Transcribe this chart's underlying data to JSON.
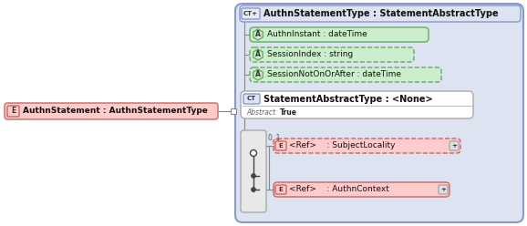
{
  "bg_color": "#ffffff",
  "main_bg": "#dde3f0",
  "main_border": "#8899cc",
  "elem_box_color": "#ffcccc",
  "elem_box_border": "#cc6666",
  "attr_box_color": "#cceecc",
  "attr_box_border": "#66aa66",
  "ct_box_color": "#dde3f0",
  "ct_box_border": "#8899cc",
  "white_box_color": "#ffffff",
  "white_box_border": "#aaaaaa",
  "seq_box_color": "#e8e8e8",
  "seq_box_border": "#aaaaaa",
  "left_elem_label": "AuthnStatement : AuthnStatementType",
  "left_elem_badge": "E",
  "main_title": "AuthnStatementType : StatementAbstractType",
  "main_badge": "CT+",
  "attr1_badge": "A",
  "attr1_label": "AuthnInstant : dateTime",
  "attr2_badge": "A",
  "attr2_label": "SessionIndex : string",
  "attr3_badge": "A",
  "attr3_label": "SessionNotOnOrAfter : dateTime",
  "ct_badge": "CT",
  "ct_label": "StatementAbstractType : <None>",
  "ct_abstract": "Abstract",
  "ct_abstract_val": "True",
  "ref1_badge": "E",
  "ref1_label": "<Ref>    : SubjectLocality",
  "ref2_badge": "E",
  "ref2_label": "<Ref>    : AuthnContext",
  "multiplicity": "0..1"
}
